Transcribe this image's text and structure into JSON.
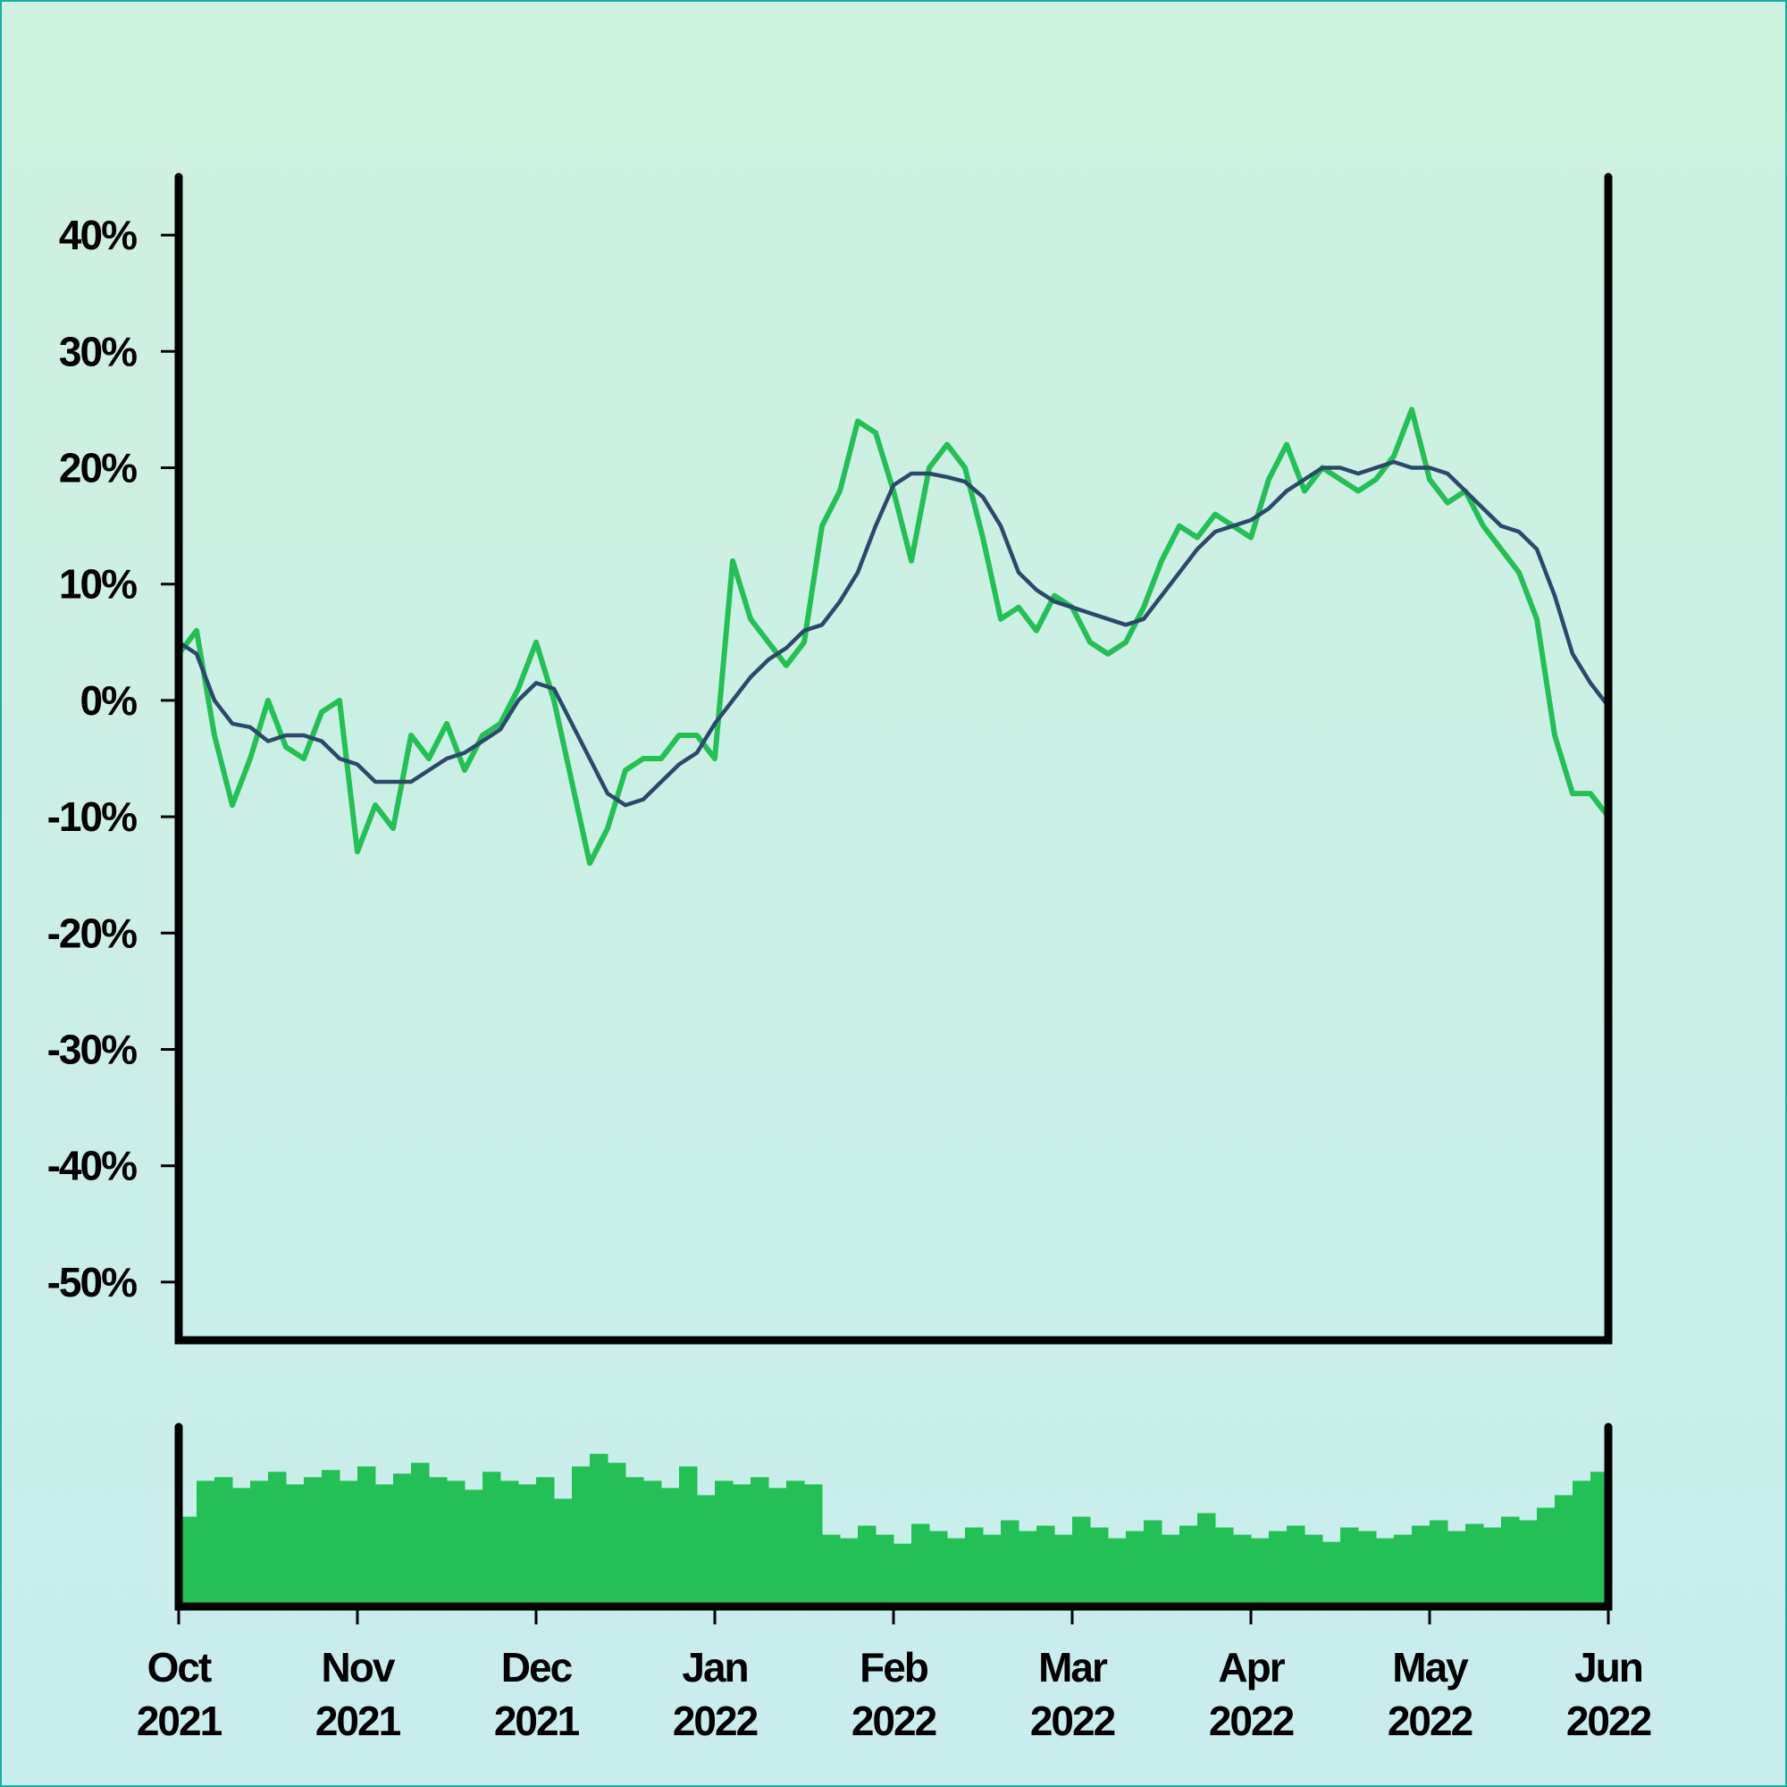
{
  "chart_data": [
    {
      "type": "line",
      "x": [
        0,
        0.1,
        0.2,
        0.3,
        0.4,
        0.5,
        0.6,
        0.7,
        0.8,
        0.9,
        1,
        1.1,
        1.2,
        1.3,
        1.4,
        1.5,
        1.6,
        1.7,
        1.8,
        1.9,
        2,
        2.1,
        2.2,
        2.3,
        2.4,
        2.5,
        2.6,
        2.7,
        2.8,
        2.9,
        3,
        3.1,
        3.2,
        3.3,
        3.4,
        3.5,
        3.6,
        3.7,
        3.8,
        3.9,
        4,
        4.1,
        4.2,
        4.3,
        4.4,
        4.5,
        4.6,
        4.7,
        4.8,
        4.9,
        5,
        5.1,
        5.2,
        5.3,
        5.4,
        5.5,
        5.6,
        5.7,
        5.8,
        5.9,
        6,
        6.1,
        6.2,
        6.3,
        6.4,
        6.5,
        6.6,
        6.7,
        6.8,
        6.9,
        7,
        7.1,
        7.2,
        7.3,
        7.4,
        7.5,
        7.6,
        7.7,
        7.8,
        7.9,
        8
      ],
      "series": [
        {
          "color": "#22c055",
          "values": [
            4,
            6,
            -3,
            -9,
            -5,
            0,
            -4,
            -5,
            -1,
            0,
            -13,
            -9,
            -11,
            -3,
            -5,
            -2,
            -6,
            -3,
            -2,
            1,
            5,
            0,
            -7,
            -14,
            -11,
            -6,
            -5,
            -5,
            -3,
            -3,
            -5,
            12,
            7,
            5,
            3,
            5,
            15,
            18,
            24,
            23,
            18,
            12,
            20,
            22,
            20,
            14,
            7,
            8,
            6,
            9,
            8,
            5,
            4,
            5,
            8,
            12,
            15,
            14,
            16,
            15,
            14,
            19,
            22,
            18,
            20,
            19,
            18,
            19,
            21,
            25,
            19,
            17,
            18,
            15,
            13,
            11,
            7,
            -3,
            -8,
            -8,
            -10
          ]
        },
        {
          "color": "#2b4a6a",
          "values": [
            5,
            4,
            0,
            -2,
            -2.3,
            -3.5,
            -3,
            -3,
            -3.5,
            -5,
            -5.5,
            -7,
            -7,
            -7,
            -6,
            -5,
            -4.5,
            -3.5,
            -2.5,
            0,
            1.5,
            1,
            -2,
            -5,
            -8,
            -9,
            -8.5,
            -7,
            -5.5,
            -4.5,
            -2,
            0,
            2,
            3.5,
            4.5,
            6,
            6.5,
            8.5,
            11,
            15,
            18.5,
            19.5,
            19.5,
            19.2,
            18.8,
            17.5,
            15,
            11,
            9.5,
            8.5,
            8,
            7.5,
            7,
            6.5,
            7,
            9,
            11,
            13,
            14.5,
            15,
            15.5,
            16.5,
            18,
            19,
            20,
            20,
            19.5,
            20,
            20.5,
            20,
            20,
            19.5,
            18,
            16.5,
            15,
            14.5,
            13,
            9,
            4,
            1.5,
            -0.5
          ]
        }
      ],
      "xlim": [
        0,
        8
      ],
      "ylim": [
        -55,
        45
      ],
      "yticks": [
        {
          "value": 40,
          "label": "40%"
        },
        {
          "value": 30,
          "label": "30%"
        },
        {
          "value": 20,
          "label": "20%"
        },
        {
          "value": 10,
          "label": "10%"
        },
        {
          "value": 0,
          "label": "0%"
        },
        {
          "value": -10,
          "label": "-10%"
        },
        {
          "value": -20,
          "label": "-20%"
        },
        {
          "value": -30,
          "label": "-30%"
        },
        {
          "value": -40,
          "label": "-40%"
        },
        {
          "value": -50,
          "label": "-50%"
        }
      ]
    },
    {
      "type": "bar",
      "x": [
        0,
        0.1,
        0.2,
        0.3,
        0.4,
        0.5,
        0.6,
        0.7,
        0.8,
        0.9,
        1,
        1.1,
        1.2,
        1.3,
        1.4,
        1.5,
        1.6,
        1.7,
        1.8,
        1.9,
        2,
        2.1,
        2.2,
        2.3,
        2.4,
        2.5,
        2.6,
        2.7,
        2.8,
        2.9,
        3,
        3.1,
        3.2,
        3.3,
        3.4,
        3.5,
        3.6,
        3.7,
        3.8,
        3.9,
        4,
        4.1,
        4.2,
        4.3,
        4.4,
        4.5,
        4.6,
        4.7,
        4.8,
        4.9,
        5,
        5.1,
        5.2,
        5.3,
        5.4,
        5.5,
        5.6,
        5.7,
        5.8,
        5.9,
        6,
        6.1,
        6.2,
        6.3,
        6.4,
        6.5,
        6.6,
        6.7,
        6.8,
        6.9,
        7,
        7.1,
        7.2,
        7.3,
        7.4,
        7.5,
        7.6,
        7.7,
        7.8,
        7.9,
        8
      ],
      "color": "#22c055",
      "values": [
        50,
        70,
        72,
        66,
        70,
        75,
        68,
        72,
        76,
        70,
        78,
        68,
        74,
        80,
        72,
        70,
        65,
        75,
        70,
        68,
        72,
        60,
        78,
        85,
        80,
        72,
        70,
        66,
        78,
        62,
        70,
        68,
        72,
        66,
        70,
        68,
        40,
        38,
        45,
        40,
        35,
        46,
        42,
        38,
        44,
        40,
        48,
        42,
        45,
        40,
        50,
        44,
        38,
        42,
        48,
        40,
        45,
        52,
        44,
        40,
        38,
        42,
        45,
        40,
        36,
        44,
        42,
        38,
        40,
        45,
        48,
        42,
        46,
        44,
        50,
        48,
        55,
        62,
        70,
        75,
        72
      ],
      "xlim": [
        0,
        8
      ],
      "ylim": [
        0,
        100
      ],
      "xticks": [
        {
          "value": 0,
          "label": "Oct 2021"
        },
        {
          "value": 1,
          "label": "Nov 2021"
        },
        {
          "value": 2,
          "label": "Dec 2021"
        },
        {
          "value": 3,
          "label": "Jan 2022"
        },
        {
          "value": 4,
          "label": "Feb 2022"
        },
        {
          "value": 5,
          "label": "Mar 2022"
        },
        {
          "value": 6,
          "label": "Apr 2022"
        },
        {
          "value": 7,
          "label": "May 2022"
        },
        {
          "value": 8,
          "label": "Jun 2022"
        }
      ]
    }
  ]
}
